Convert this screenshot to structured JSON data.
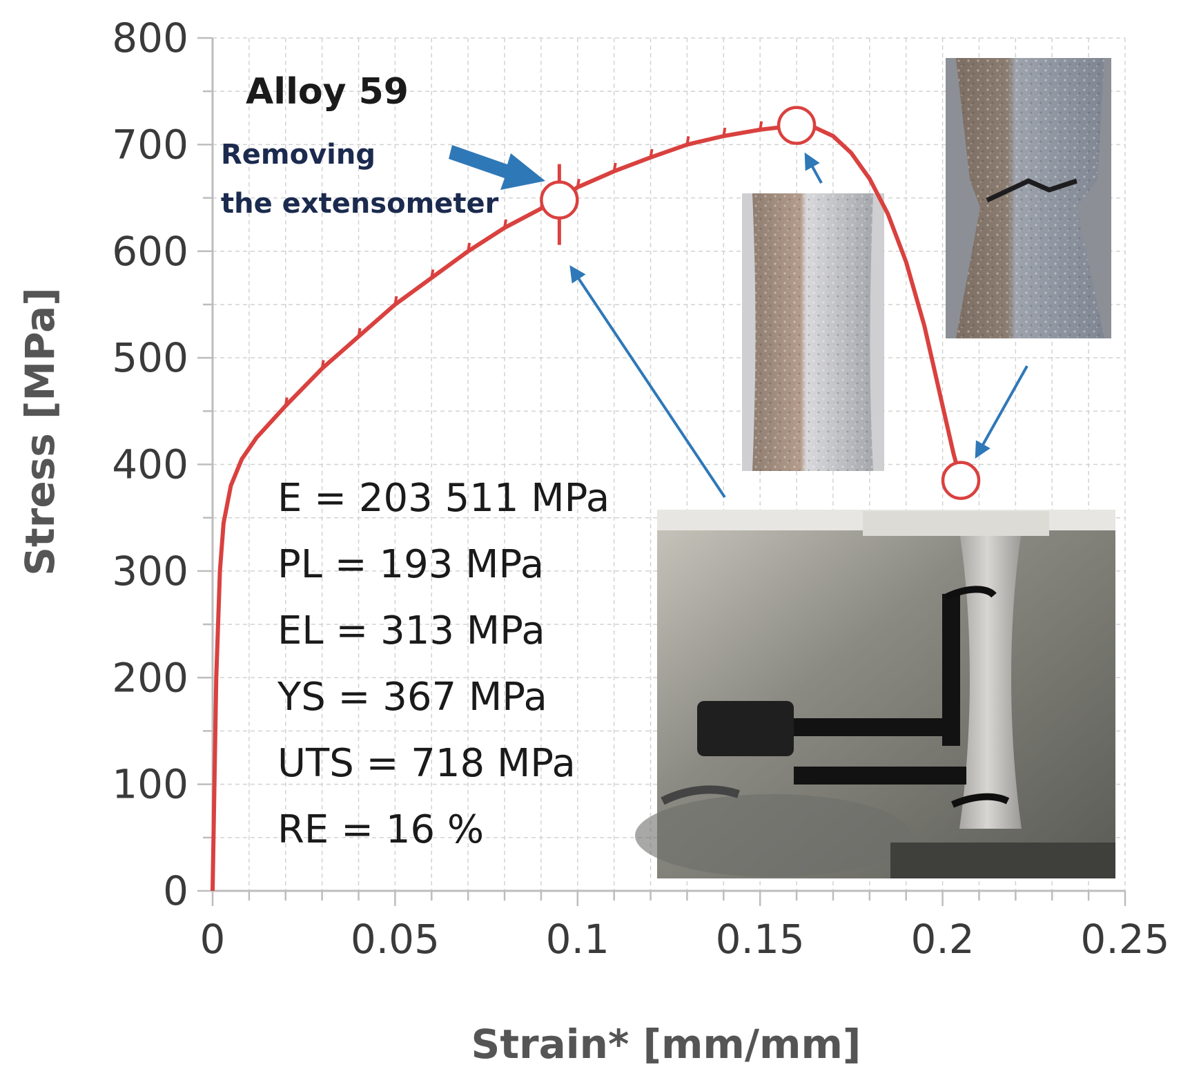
{
  "chart_data": {
    "type": "line",
    "title": "Alloy 59",
    "xlabel": "Strain* [mm/mm]",
    "ylabel": "Stress [MPa]",
    "xlim": [
      0,
      0.25
    ],
    "ylim": [
      0,
      800
    ],
    "x_ticks": [
      "0",
      "0.05",
      "0.1",
      "0.15",
      "0.2",
      "0.25"
    ],
    "y_ticks": [
      "0",
      "100",
      "200",
      "300",
      "400",
      "500",
      "600",
      "700",
      "800"
    ],
    "grid": true,
    "series_color": "#d9413f",
    "series": [
      {
        "x": [
          0,
          0.001,
          0.002,
          0.003,
          0.005,
          0.008,
          0.012,
          0.02,
          0.03,
          0.04,
          0.05,
          0.06,
          0.07,
          0.08,
          0.09,
          0.095,
          0.1,
          0.11,
          0.12,
          0.13,
          0.14,
          0.15,
          0.155,
          0.16,
          0.165,
          0.17,
          0.175,
          0.18,
          0.185,
          0.19,
          0.195,
          0.2,
          0.203,
          0.205
        ],
        "y": [
          0,
          200,
          300,
          345,
          380,
          405,
          425,
          455,
          490,
          520,
          550,
          575,
          600,
          622,
          640,
          648,
          660,
          675,
          688,
          700,
          708,
          714,
          716,
          718,
          716,
          708,
          692,
          668,
          635,
          590,
          530,
          455,
          410,
          385
        ]
      }
    ],
    "markers": [
      {
        "x": 0.095,
        "y": 648,
        "role": "extensometer-removed"
      },
      {
        "x": 0.16,
        "y": 718,
        "role": "uts"
      },
      {
        "x": 0.205,
        "y": 385,
        "role": "fracture"
      }
    ],
    "annotation": {
      "line1": "Removing",
      "line2": "the extensometer"
    },
    "properties": [
      "E = 203 511 MPa",
      "PL = 193 MPa",
      "EL = 313 MPa",
      "YS = 367 MPa",
      "UTS = 718 MPa",
      "RE = 16 %"
    ],
    "arrow_color": "#2f78b7"
  }
}
